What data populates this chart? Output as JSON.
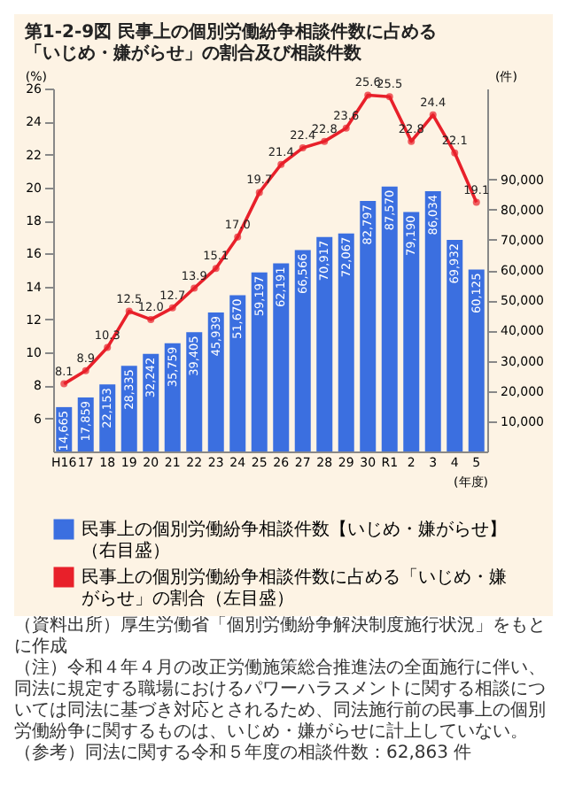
{
  "chart_data": {
    "type": "bar",
    "title": "第1-2-9図 民事上の個別労働紛争相談件数に占める「いじめ・嫌がらせ」の割合及び相談件数",
    "xlabel": "(年度)",
    "ylabel": "(%)",
    "y2label": "(件)",
    "categories": [
      "H16",
      "17",
      "18",
      "19",
      "20",
      "21",
      "22",
      "23",
      "24",
      "25",
      "26",
      "27",
      "28",
      "29",
      "30",
      "R1",
      "2",
      "3",
      "4",
      "5"
    ],
    "series": [
      {
        "name": "民事上の個別労働紛争相談件数【いじめ・嫌がらせ】（右目盛）",
        "axis": "y2",
        "color": "#3b6fe0",
        "values": [
          14665,
          17859,
          22153,
          28335,
          32242,
          35759,
          39405,
          45939,
          51670,
          59197,
          62191,
          66566,
          70917,
          72067,
          82797,
          87570,
          79190,
          86034,
          69932,
          60125
        ],
        "value_labels": [
          "14,665",
          "17,859",
          "22,153",
          "28,335",
          "32,242",
          "35,759",
          "39,405",
          "45,939",
          "51,670",
          "59,197",
          "62,191",
          "66,566",
          "70,917",
          "72,067",
          "82,797",
          "87,570",
          "79,190",
          "86,034",
          "69,932",
          "60,125"
        ]
      },
      {
        "name": "民事上の個別労働紛争相談件数に占める「いじめ・嫌がらせ」の割合（左目盛）",
        "type": "line",
        "axis": "y",
        "color": "#e8202a",
        "values": [
          8.1,
          8.9,
          10.3,
          12.5,
          12.0,
          12.7,
          13.9,
          15.1,
          17.0,
          19.7,
          21.4,
          22.4,
          22.8,
          23.6,
          25.6,
          25.5,
          22.8,
          24.4,
          22.1,
          19.1
        ],
        "value_labels": [
          "8.1",
          "8.9",
          "10.3",
          "12.5",
          "12.0",
          "12.7",
          "13.9",
          "15.1",
          "17.0",
          "19.7",
          "21.4",
          "22.4",
          "22.8",
          "23.6",
          "25.6",
          "25.5",
          "22.8",
          "24.4",
          "22.1",
          "19.1"
        ]
      }
    ],
    "ylim": [
      4,
      26
    ],
    "yticks": [
      6,
      8,
      10,
      12,
      14,
      16,
      18,
      20,
      22,
      24,
      26
    ],
    "y2lim": [
      0,
      120000
    ],
    "y2ticks": [
      {
        "value": 10000,
        "label": "10,000"
      },
      {
        "value": 20000,
        "label": "20,000"
      },
      {
        "value": 30000,
        "label": "30,000"
      },
      {
        "value": 40000,
        "label": "40,000"
      },
      {
        "value": 50000,
        "label": "50,000"
      },
      {
        "value": 60000,
        "label": "60,000"
      },
      {
        "value": 70000,
        "label": "70,000"
      },
      {
        "value": 80000,
        "label": "80,000"
      },
      {
        "value": 90000,
        "label": "90,000"
      }
    ],
    "marker": "circle",
    "grid": false,
    "legend": "bottom",
    "annotations": [
      "（資料出所）厚生労働省「個別労働紛争解決制度施行状況」をもとに作成",
      "（注）令和４年４月の改正労働施策総合推進法の全面施行に伴い、同法に規定する職場におけるパワーハラスメントに関する相談については同法に基づき対応とされるため、同法施行前の民事上の個別労働紛争に関するものは、いじめ・嫌がらせに計上していない。",
      "（参考）同法に関する令和５年度の相談件数：62,863 件"
    ]
  }
}
